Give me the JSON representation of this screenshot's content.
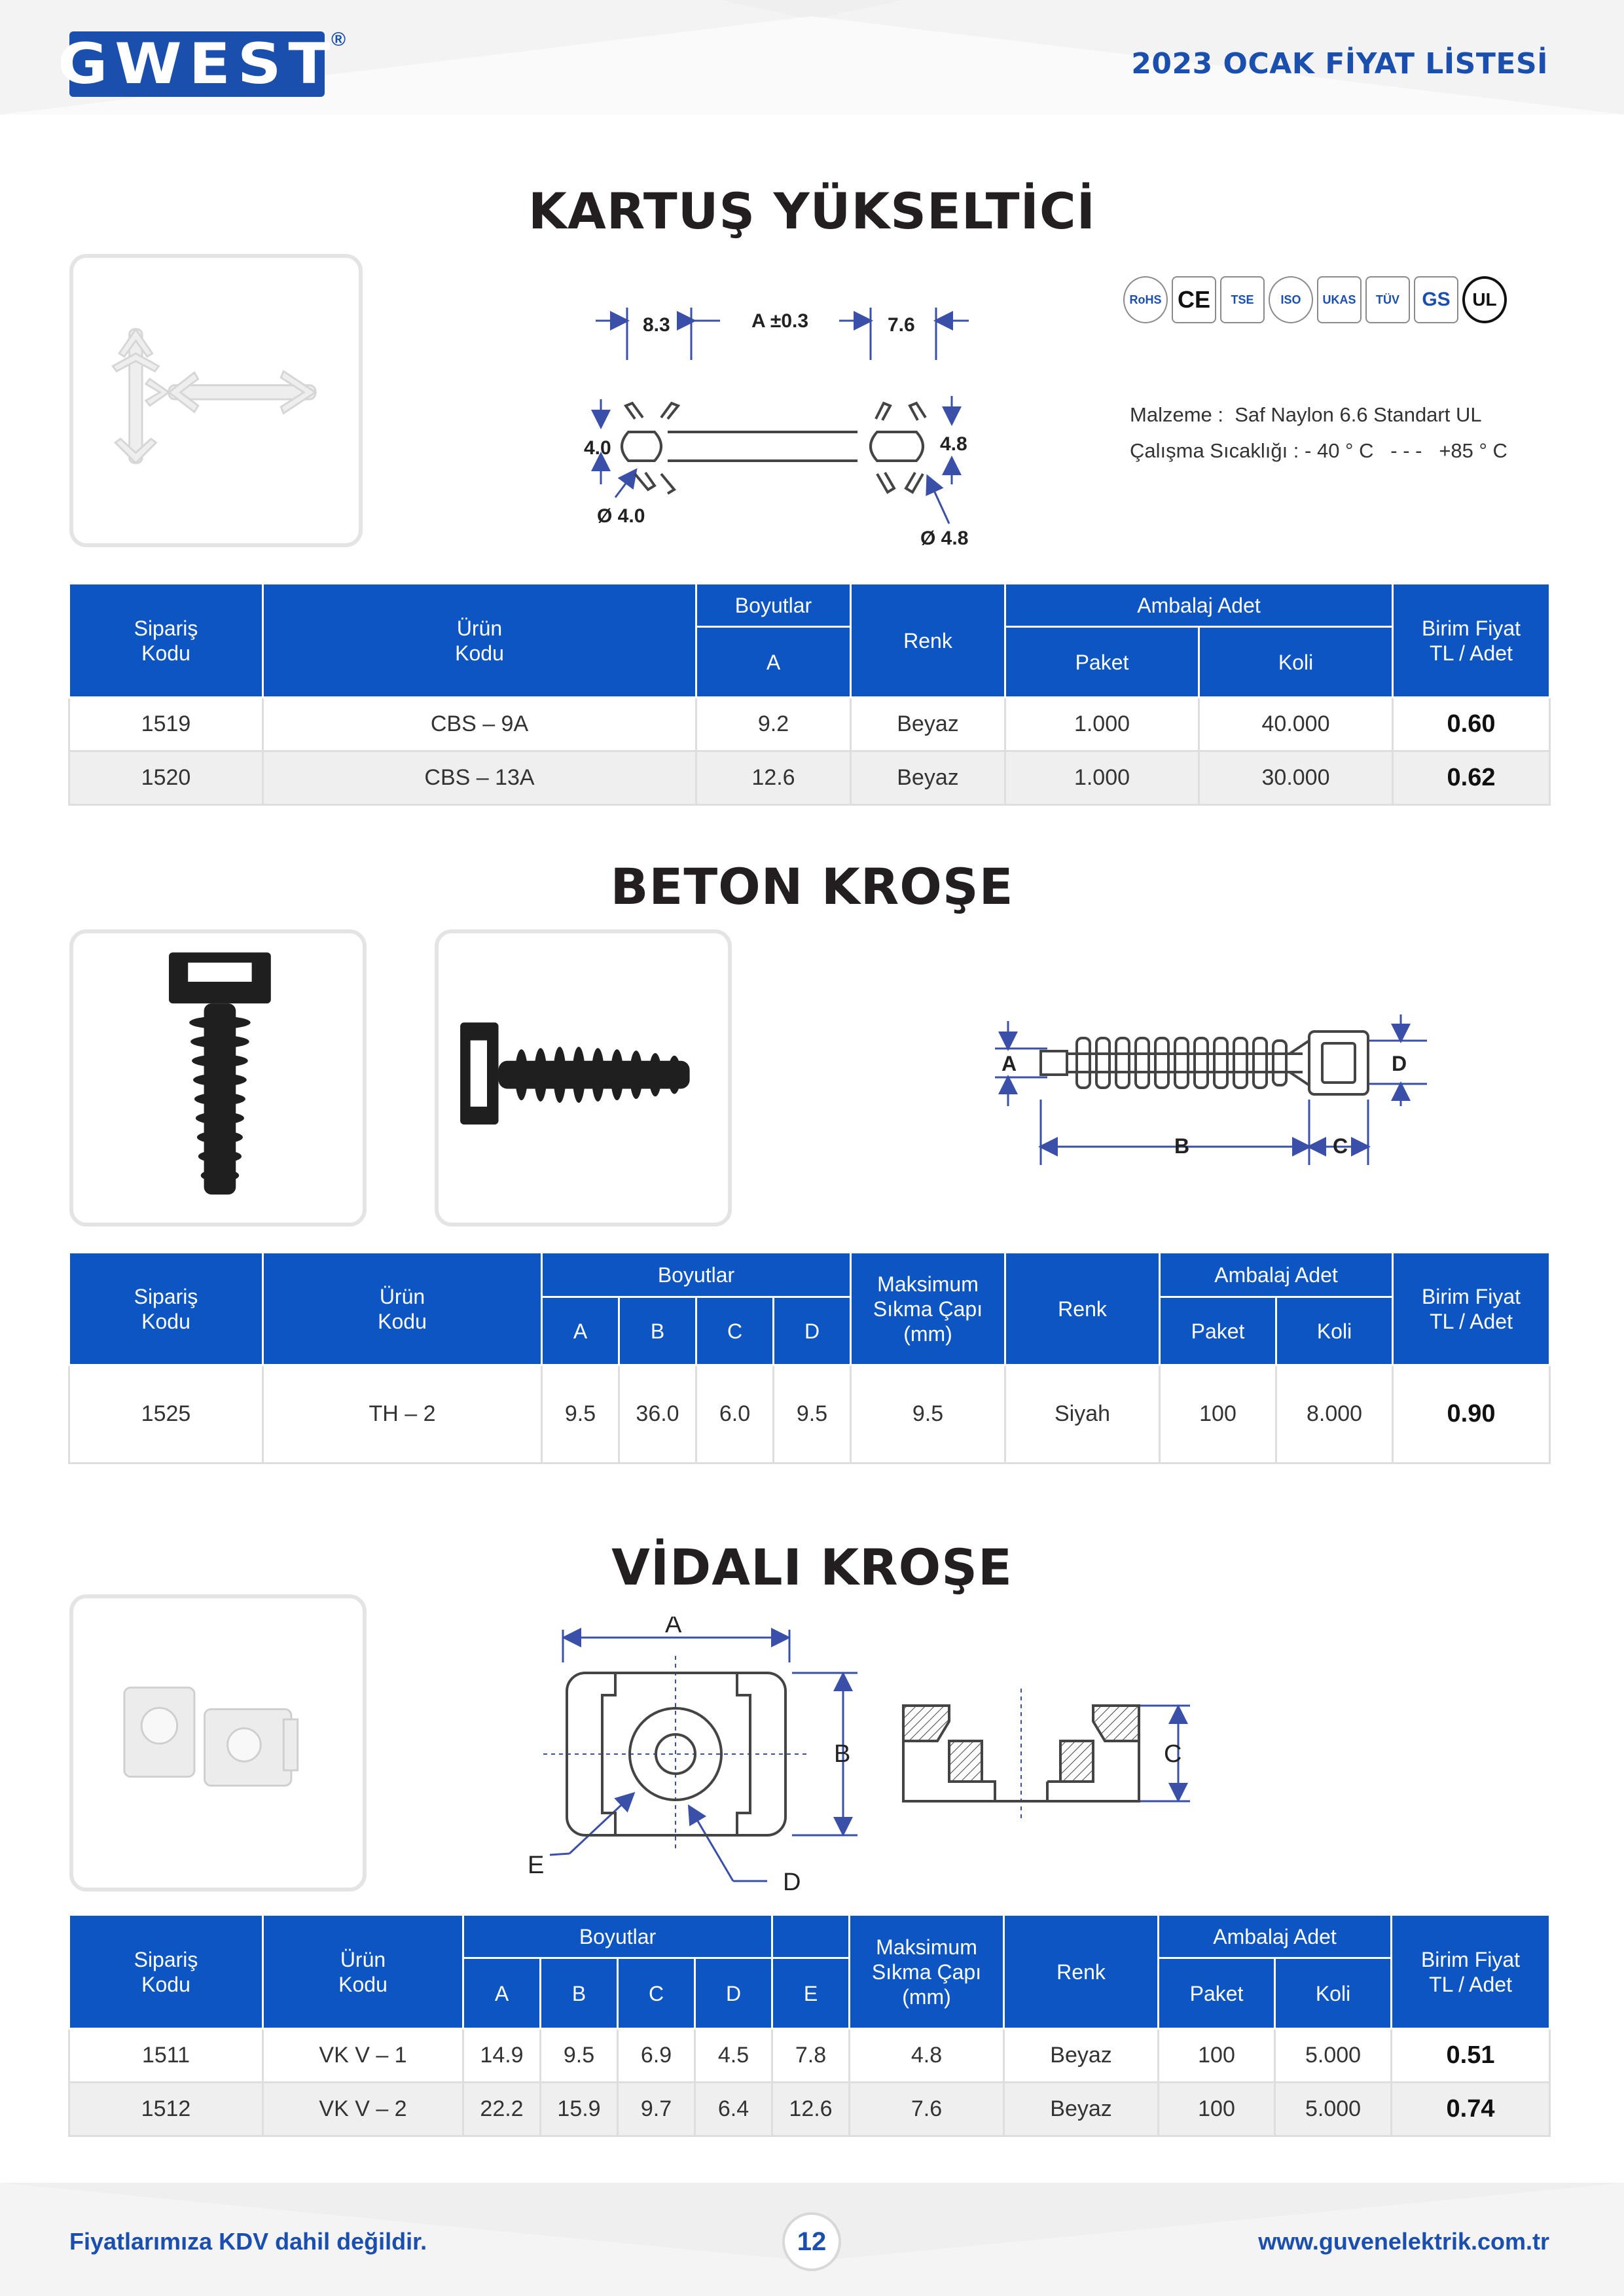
{
  "header": {
    "logo_text": "GWEST",
    "registered": "®",
    "title": "2023 OCAK FİYAT LİSTESİ"
  },
  "section1": {
    "title": "KARTUŞ YÜKSELTİCİ",
    "drawing_labels": {
      "left_top": "8.3",
      "middle": "A ±0.3",
      "right_top": "7.6",
      "left_side": "4.0",
      "right_side": "4.8",
      "left_dia": "Ø 4.0",
      "right_dia": "Ø 4.8"
    },
    "certs": [
      "RoHS",
      "CE",
      "TSE",
      "ISO",
      "UKAS",
      "TÜV",
      "GS",
      "UL"
    ],
    "specs": {
      "material": "Malzeme :  Saf Naylon 6.6 Standart UL",
      "temperature": "Çalışma Sıcaklığı : - 40 ° C   - - -   +85 ° C"
    },
    "table": {
      "headers": {
        "order_code": "Sipariş\nKodu",
        "product_code": "Ürün\nKodu",
        "dimensions": "Boyutlar",
        "dim_a": "A",
        "color": "Renk",
        "packaging": "Ambalaj Adet",
        "package": "Paket",
        "box": "Koli",
        "unit_price": "Birim Fiyat\nTL / Adet"
      },
      "rows": [
        {
          "order": "1519",
          "product": "CBS – 9A",
          "a": "9.2",
          "color": "Beyaz",
          "paket": "1.000",
          "koli": "40.000",
          "price": "0.60"
        },
        {
          "order": "1520",
          "product": "CBS – 13A",
          "a": "12.6",
          "color": "Beyaz",
          "paket": "1.000",
          "koli": "30.000",
          "price": "0.62"
        }
      ]
    }
  },
  "section2": {
    "title": "BETON KROŞE",
    "drawing_labels": {
      "a": "A",
      "b": "B",
      "c": "C",
      "d": "D"
    },
    "table": {
      "headers": {
        "order_code": "Sipariş\nKodu",
        "product_code": "Ürün\nKodu",
        "dimensions": "Boyutlar",
        "a": "A",
        "b": "B",
        "c": "C",
        "d": "D",
        "max_dia": "Maksimum\nSıkma Çapı\n(mm)",
        "color": "Renk",
        "packaging": "Ambalaj Adet",
        "package": "Paket",
        "box": "Koli",
        "unit_price": "Birim Fiyat\nTL / Adet"
      },
      "rows": [
        {
          "order": "1525",
          "product": "TH – 2",
          "a": "9.5",
          "b": "36.0",
          "c": "6.0",
          "d": "9.5",
          "max": "9.5",
          "color": "Siyah",
          "paket": "100",
          "koli": "8.000",
          "price": "0.90"
        }
      ]
    }
  },
  "section3": {
    "title": "VİDALI KROŞE",
    "drawing_labels": {
      "a": "A",
      "b": "B",
      "c": "C",
      "d": "D",
      "e": "E"
    },
    "table": {
      "headers": {
        "order_code": "Sipariş\nKodu",
        "product_code": "Ürün\nKodu",
        "dimensions": "Boyutlar",
        "a": "A",
        "b": "B",
        "c": "C",
        "d": "D",
        "e": "E",
        "max_dia": "Maksimum\nSıkma Çapı\n(mm)",
        "color": "Renk",
        "packaging": "Ambalaj Adet",
        "package": "Paket",
        "box": "Koli",
        "unit_price": "Birim Fiyat\nTL / Adet"
      },
      "rows": [
        {
          "order": "1511",
          "product": "VK V – 1",
          "a": "14.9",
          "b": "9.5",
          "c": "6.9",
          "d": "4.5",
          "e": "7.8",
          "max": "4.8",
          "color": "Beyaz",
          "paket": "100",
          "koli": "5.000",
          "price": "0.51"
        },
        {
          "order": "1512",
          "product": "VK V – 2",
          "a": "22.2",
          "b": "15.9",
          "c": "9.7",
          "d": "6.4",
          "e": "12.6",
          "max": "7.6",
          "color": "Beyaz",
          "paket": "100",
          "koli": "5.000",
          "price": "0.74"
        }
      ]
    }
  },
  "footer": {
    "vat_note": "Fiyatlarımıza KDV dahil değildir.",
    "page": "12",
    "website": "www.guvenelektrik.com.tr"
  },
  "colors": {
    "brand_blue": "#1b4fae",
    "table_header": "#0d55c2",
    "drawing_blue": "#3a4fa8"
  }
}
